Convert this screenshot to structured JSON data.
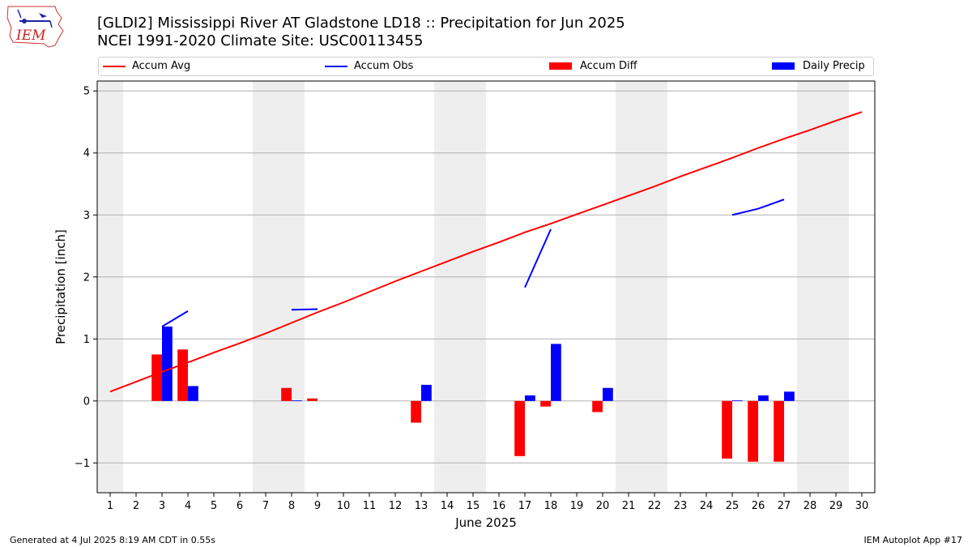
{
  "header": {
    "title_line1": "[GLDI2] Mississippi River  AT Gladstone LD18 :: Precipitation for Jun 2025",
    "title_line2": "NCEI 1991-2020 Climate Site: USC00113455",
    "logo_text": "IEM"
  },
  "footer": {
    "left": "Generated at 4 Jul 2025 8:19 AM CDT in 0.55s",
    "right": "IEM Autoplot App #17"
  },
  "colors": {
    "avg": "#ff0000",
    "obs": "#0000ff",
    "diff": "#ff0000",
    "daily": "#0000ff",
    "weekend_band": "#eeeeee",
    "grid": "#b0b0b0"
  },
  "chart_data": {
    "type": "bar",
    "title": "[GLDI2] Mississippi River  AT Gladstone LD18 :: Precipitation for Jun 2025",
    "subtitle": "NCEI 1991-2020 Climate Site: USC00113455",
    "xlabel": "June 2025",
    "ylabel": "Precipitation [inch]",
    "xlim": [
      0.5,
      30.5
    ],
    "ylim": [
      -1.48,
      5.16
    ],
    "x": [
      1,
      2,
      3,
      4,
      5,
      6,
      7,
      8,
      9,
      10,
      11,
      12,
      13,
      14,
      15,
      16,
      17,
      18,
      19,
      20,
      21,
      22,
      23,
      24,
      25,
      26,
      27,
      28,
      29,
      30
    ],
    "x_ticks": [
      "1",
      "2",
      "3",
      "4",
      "5",
      "6",
      "7",
      "8",
      "9",
      "10",
      "11",
      "12",
      "13",
      "14",
      "15",
      "16",
      "17",
      "18",
      "19",
      "20",
      "21",
      "22",
      "23",
      "24",
      "25",
      "26",
      "27",
      "28",
      "29",
      "30"
    ],
    "y_ticks": [
      "−1",
      "0",
      "1",
      "2",
      "3",
      "4",
      "5"
    ],
    "y_tick_values": [
      -1,
      0,
      1,
      2,
      3,
      4,
      5
    ],
    "grid": "horizontal",
    "legend_placement": "top",
    "shaded_weekend_spans": [
      [
        0.5,
        1.5
      ],
      [
        6.5,
        8.5
      ],
      [
        13.5,
        15.5
      ],
      [
        20.5,
        22.5
      ],
      [
        27.5,
        29.5
      ]
    ],
    "series": [
      {
        "name": "Accum Avg",
        "kind": "line",
        "values": [
          0.15,
          0.31,
          0.47,
          0.62,
          0.78,
          0.93,
          1.09,
          1.26,
          1.43,
          1.59,
          1.76,
          1.93,
          2.09,
          2.25,
          2.41,
          2.56,
          2.72,
          2.86,
          3.01,
          3.16,
          3.31,
          3.46,
          3.62,
          3.77,
          3.92,
          4.08,
          4.23,
          4.37,
          4.52,
          4.66
        ]
      },
      {
        "name": "Accum Obs",
        "kind": "line",
        "values": [
          null,
          null,
          1.2,
          1.45,
          null,
          null,
          null,
          1.47,
          1.48,
          null,
          null,
          null,
          null,
          null,
          null,
          null,
          1.83,
          2.77,
          null,
          null,
          null,
          null,
          null,
          null,
          3.0,
          3.1,
          3.25,
          null,
          null,
          null
        ]
      },
      {
        "name": "Accum Diff",
        "kind": "bar",
        "values": [
          null,
          null,
          0.75,
          0.83,
          null,
          null,
          null,
          0.21,
          0.04,
          null,
          null,
          null,
          -0.35,
          null,
          null,
          null,
          -0.89,
          -0.09,
          null,
          -0.18,
          null,
          null,
          null,
          null,
          -0.93,
          -0.98,
          -0.98,
          null,
          null,
          null
        ]
      },
      {
        "name": "Daily Precip",
        "kind": "bar",
        "values": [
          null,
          null,
          1.2,
          0.24,
          null,
          null,
          null,
          0.01,
          null,
          null,
          null,
          null,
          0.26,
          null,
          null,
          null,
          0.09,
          0.92,
          null,
          0.21,
          null,
          null,
          null,
          null,
          0.01,
          0.09,
          0.15,
          null,
          null,
          null
        ]
      }
    ]
  }
}
